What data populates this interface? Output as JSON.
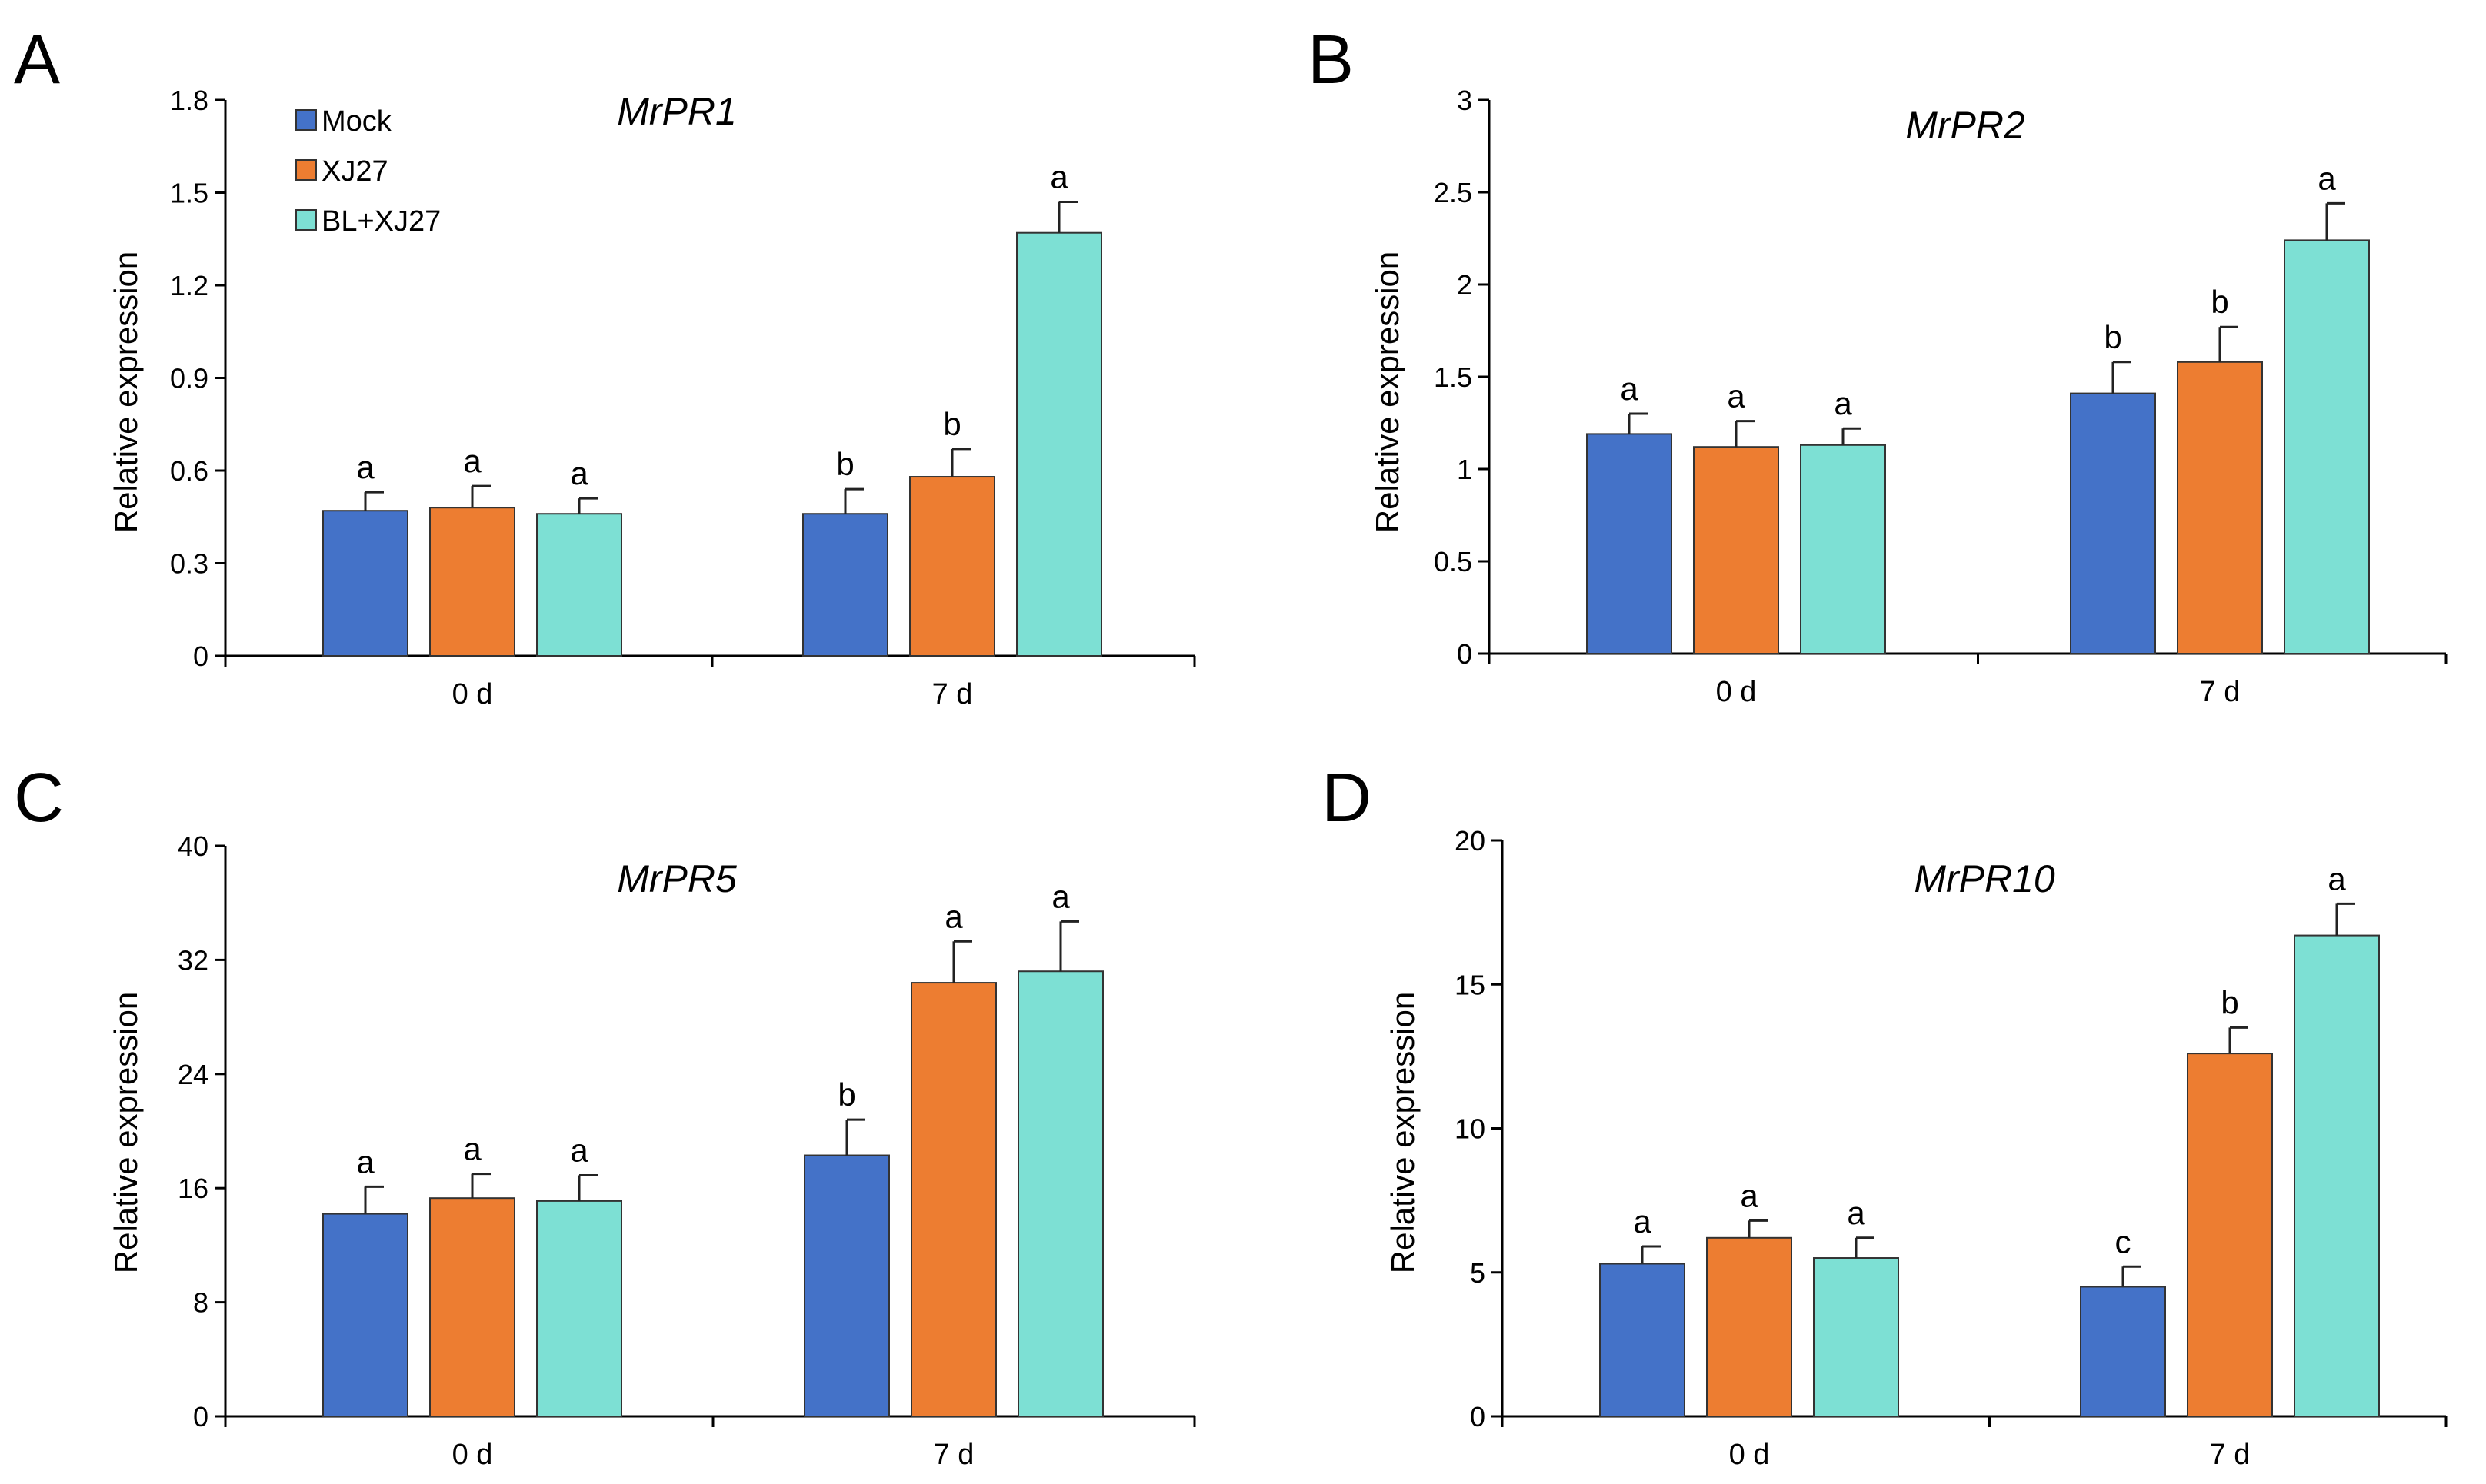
{
  "colors": {
    "mock": "#4472C8",
    "xj27": "#ED7D31",
    "blxj27": "#7DE0D4",
    "axis": "#000000"
  },
  "legend": {
    "items": [
      {
        "label": "Mock",
        "color": "#4472C8"
      },
      {
        "label": "XJ27",
        "color": "#ED7D31"
      },
      {
        "label": "BL+XJ27",
        "color": "#7DE0D4"
      }
    ]
  },
  "chart_data": [
    {
      "panel": "A",
      "type": "bar",
      "title": "MrPR1",
      "ylabel": "Relative expression",
      "xlabel": "",
      "categories": [
        "0 d",
        "7 d"
      ],
      "ylim": [
        0,
        1.8
      ],
      "yticks": [
        "0",
        "0.3",
        "0.6",
        "0.9",
        "1.2",
        "1.5",
        "1.8"
      ],
      "series": [
        {
          "name": "Mock",
          "values": [
            0.47,
            0.46
          ],
          "errors": [
            0.06,
            0.08
          ],
          "letters": [
            "a",
            "b"
          ]
        },
        {
          "name": "XJ27",
          "values": [
            0.48,
            0.58
          ],
          "errors": [
            0.07,
            0.09
          ],
          "letters": [
            "a",
            "b"
          ]
        },
        {
          "name": "BL+XJ27",
          "values": [
            0.46,
            1.37
          ],
          "errors": [
            0.05,
            0.1
          ],
          "letters": [
            "a",
            "a"
          ]
        }
      ]
    },
    {
      "panel": "B",
      "type": "bar",
      "title": "MrPR2",
      "ylabel": "Relative expression",
      "xlabel": "",
      "categories": [
        "0 d",
        "7 d"
      ],
      "ylim": [
        0,
        3
      ],
      "yticks": [
        "0",
        "0.5",
        "1",
        "1.5",
        "2",
        "2.5",
        "3"
      ],
      "series": [
        {
          "name": "Mock",
          "values": [
            1.19,
            1.41
          ],
          "errors": [
            0.11,
            0.17
          ],
          "letters": [
            "a",
            "b"
          ]
        },
        {
          "name": "XJ27",
          "values": [
            1.12,
            1.58
          ],
          "errors": [
            0.14,
            0.19
          ],
          "letters": [
            "a",
            "b"
          ]
        },
        {
          "name": "BL+XJ27",
          "values": [
            1.13,
            2.24
          ],
          "errors": [
            0.09,
            0.2
          ],
          "letters": [
            "a",
            "a"
          ]
        }
      ]
    },
    {
      "panel": "C",
      "type": "bar",
      "title": "MrPR5",
      "ylabel": "Relative expression",
      "xlabel": "",
      "categories": [
        "0 d",
        "7 d"
      ],
      "ylim": [
        0,
        40
      ],
      "yticks": [
        "0",
        "8",
        "16",
        "24",
        "32",
        "40"
      ],
      "series": [
        {
          "name": "Mock",
          "values": [
            14.2,
            18.3
          ],
          "errors": [
            1.9,
            2.5
          ],
          "letters": [
            "a",
            "b"
          ]
        },
        {
          "name": "XJ27",
          "values": [
            15.3,
            30.4
          ],
          "errors": [
            1.7,
            2.9
          ],
          "letters": [
            "a",
            "a"
          ]
        },
        {
          "name": "BL+XJ27",
          "values": [
            15.1,
            31.2
          ],
          "errors": [
            1.8,
            3.5
          ],
          "letters": [
            "a",
            "a"
          ]
        }
      ]
    },
    {
      "panel": "D",
      "type": "bar",
      "title": "MrPR10",
      "ylabel": "Relative expression",
      "xlabel": "",
      "categories": [
        "0 d",
        "7 d"
      ],
      "ylim": [
        0,
        20
      ],
      "yticks": [
        "0",
        "5",
        "10",
        "15",
        "20"
      ],
      "series": [
        {
          "name": "Mock",
          "values": [
            5.3,
            4.5
          ],
          "errors": [
            0.6,
            0.7
          ],
          "letters": [
            "a",
            "c"
          ]
        },
        {
          "name": "XJ27",
          "values": [
            6.2,
            12.6
          ],
          "errors": [
            0.6,
            0.9
          ],
          "letters": [
            "a",
            "b"
          ]
        },
        {
          "name": "BL+XJ27",
          "values": [
            5.5,
            16.7
          ],
          "errors": [
            0.7,
            1.1
          ],
          "letters": [
            "a",
            "a"
          ]
        }
      ]
    }
  ]
}
